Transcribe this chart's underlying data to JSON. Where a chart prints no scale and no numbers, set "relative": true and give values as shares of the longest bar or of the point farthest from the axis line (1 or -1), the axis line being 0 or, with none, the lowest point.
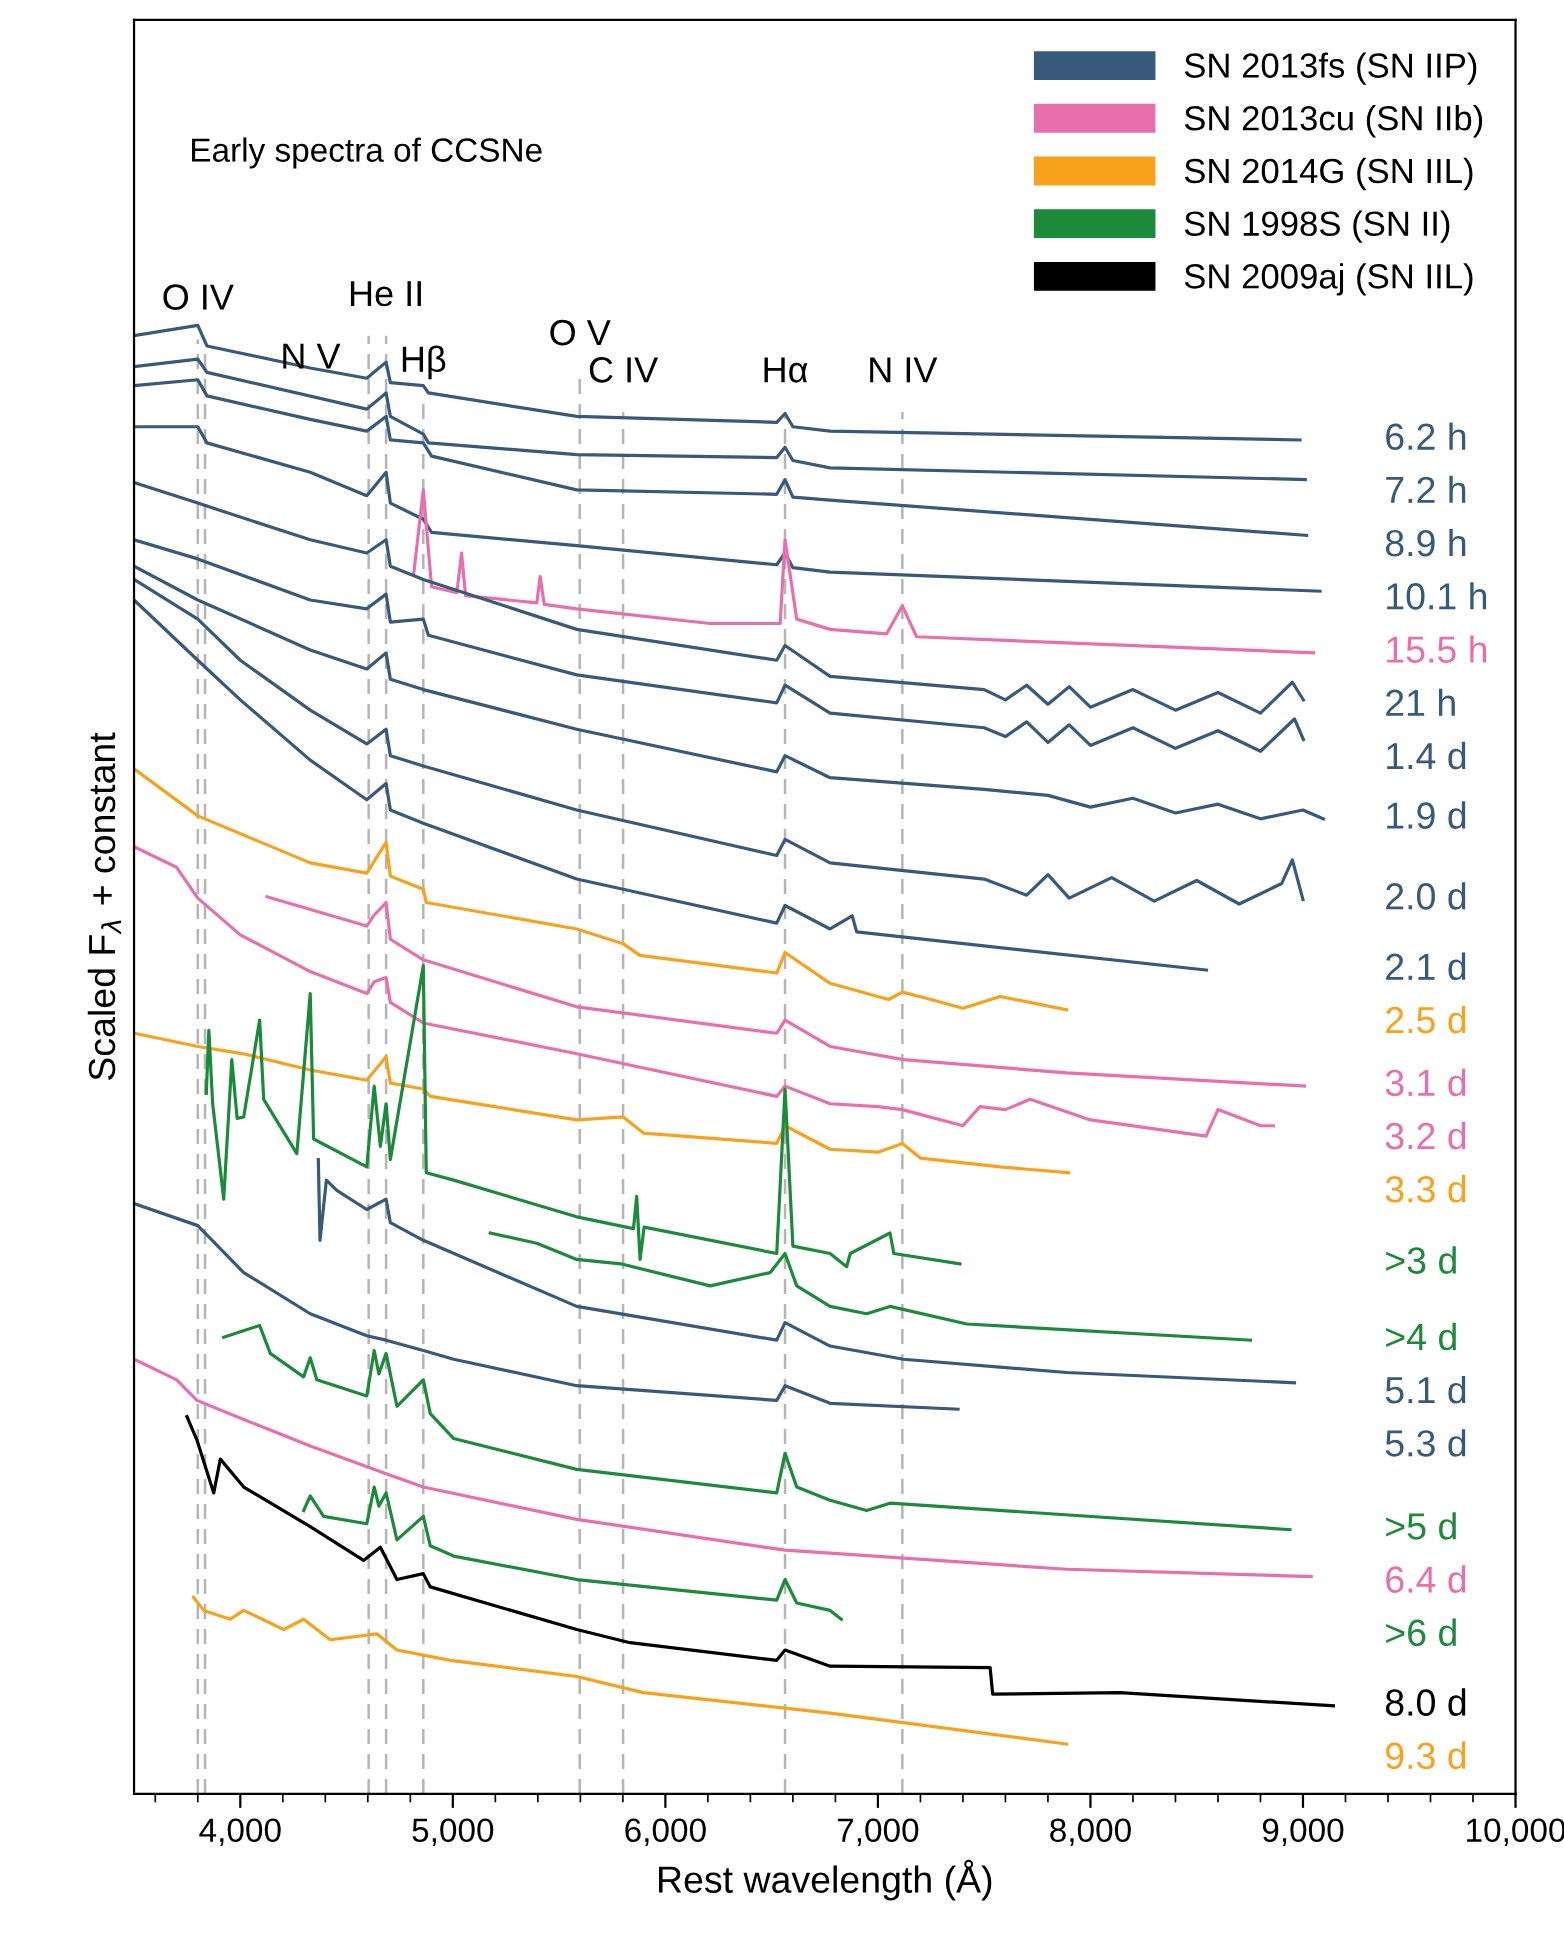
{
  "chart_data": {
    "type": "line",
    "title": "Early spectra of CCSNe",
    "xlabel": "Rest wavelength (Å)",
    "ylabel": "Scaled F$_{λ}$ + constant",
    "relative": true,
    "legend": "top right",
    "line_style": "solid",
    "xlim": [
      3500,
      10000
    ],
    "xticks": [
      {
        "value": 3600,
        "label": null
      },
      {
        "value": 3800,
        "label": null
      },
      {
        "value": 4000,
        "label": "4,000"
      },
      {
        "value": 4200,
        "label": null
      },
      {
        "value": 4400,
        "label": null
      },
      {
        "value": 4600,
        "label": null
      },
      {
        "value": 4800,
        "label": null
      },
      {
        "value": 5000,
        "label": "5,000"
      },
      {
        "value": 5200,
        "label": null
      },
      {
        "value": 5400,
        "label": null
      },
      {
        "value": 5600,
        "label": null
      },
      {
        "value": 5800,
        "label": null
      },
      {
        "value": 6000,
        "label": "6,000"
      },
      {
        "value": 6200,
        "label": null
      },
      {
        "value": 6400,
        "label": null
      },
      {
        "value": 6600,
        "label": null
      },
      {
        "value": 6800,
        "label": null
      },
      {
        "value": 7000,
        "label": "7,000"
      },
      {
        "value": 7200,
        "label": null
      },
      {
        "value": 7400,
        "label": null
      },
      {
        "value": 7600,
        "label": null
      },
      {
        "value": 7800,
        "label": null
      },
      {
        "value": 8000,
        "label": "8,000"
      },
      {
        "value": 8200,
        "label": null
      },
      {
        "value": 8400,
        "label": null
      },
      {
        "value": 8600,
        "label": null
      },
      {
        "value": 8800,
        "label": null
      },
      {
        "value": 9000,
        "label": "9,000"
      },
      {
        "value": 9200,
        "label": null
      },
      {
        "value": 9400,
        "label": null
      },
      {
        "value": 9600,
        "label": null
      },
      {
        "value": 9800,
        "label": null
      },
      {
        "value": 10000,
        "label": "10,000"
      }
    ],
    "series": [
      {
        "name": "SN 2013fs (SN IIP)",
        "color": "#37597c",
        "x": [
          3500,
          3800,
          3843,
          4329,
          4595,
          4686,
          4706,
          4861,
          4885,
          5583,
          6524,
          6563,
          6600,
          6775,
          8986
        ],
        "values": [
          0.993,
          1.0,
          0.986,
          0.971,
          0.964,
          0.975,
          0.961,
          0.959,
          0.954,
          0.938,
          0.934,
          0.94,
          0.931,
          0.928,
          0.922
        ]
      },
      {
        "color": "#37597c",
        "x": [
          3500,
          3800,
          3843,
          4595,
          4686,
          4706,
          4861,
          4885,
          5583,
          6524,
          6563,
          6600,
          6775,
          9011
        ],
        "values": [
          0.972,
          0.977,
          0.968,
          0.943,
          0.954,
          0.938,
          0.926,
          0.92,
          0.912,
          0.91,
          0.917,
          0.908,
          0.903,
          0.895
        ]
      },
      {
        "color": "#37597c",
        "x": [
          3500,
          3800,
          3843,
          4329,
          4595,
          4686,
          4706,
          4861,
          4900,
          5583,
          6524,
          6563,
          6600,
          6775,
          9017
        ],
        "values": [
          0.959,
          0.963,
          0.952,
          0.936,
          0.928,
          0.938,
          0.922,
          0.92,
          0.911,
          0.888,
          0.885,
          0.895,
          0.883,
          0.881,
          0.857
        ]
      },
      {
        "color": "#37597c",
        "x": [
          3500,
          3800,
          3843,
          4329,
          4595,
          4686,
          4706,
          4861,
          4900,
          5583,
          6524,
          6563,
          6600,
          6775,
          9080
        ],
        "values": [
          0.931,
          0.931,
          0.92,
          0.9,
          0.884,
          0.9,
          0.879,
          0.868,
          0.859,
          0.85,
          0.837,
          0.845,
          0.835,
          0.832,
          0.819
        ]
      },
      {
        "name": "SN 2013cu (SN IIb)",
        "color": "#e96fac",
        "x": [
          4816,
          4861,
          4900,
          5019,
          5041,
          5060,
          5395,
          5411,
          5430,
          5583,
          6211,
          6540,
          6563,
          6618,
          6775,
          7041,
          7115,
          7182,
          9049
        ],
        "values": [
          0.831,
          0.888,
          0.822,
          0.818,
          0.845,
          0.816,
          0.811,
          0.829,
          0.81,
          0.807,
          0.797,
          0.797,
          0.854,
          0.8,
          0.793,
          0.79,
          0.809,
          0.788,
          0.777
        ]
      },
      {
        "color": "#37597c",
        "x": [
          3500,
          3800,
          4329,
          4595,
          4686,
          4706,
          4861,
          5583,
          6524,
          6563,
          6775,
          7500,
          7600,
          7700,
          7800,
          7900,
          8000,
          8200,
          8400,
          8600,
          8800,
          8950,
          9002
        ],
        "values": [
          0.893,
          0.879,
          0.854,
          0.845,
          0.854,
          0.836,
          0.827,
          0.793,
          0.772,
          0.782,
          0.761,
          0.752,
          0.745,
          0.755,
          0.742,
          0.754,
          0.74,
          0.752,
          0.738,
          0.75,
          0.736,
          0.757,
          0.745
        ]
      },
      {
        "color": "#37597c",
        "x": [
          3500,
          3800,
          4329,
          4595,
          4686,
          4706,
          4861,
          4885,
          5583,
          6524,
          6563,
          6775,
          7500,
          7600,
          7700,
          7800,
          7900,
          8000,
          8200,
          8400,
          8600,
          8800,
          8960,
          9002
        ],
        "values": [
          0.854,
          0.841,
          0.813,
          0.807,
          0.817,
          0.798,
          0.8,
          0.789,
          0.762,
          0.743,
          0.755,
          0.736,
          0.726,
          0.72,
          0.73,
          0.716,
          0.728,
          0.714,
          0.726,
          0.712,
          0.724,
          0.71,
          0.732,
          0.718
        ]
      },
      {
        "color": "#37597c",
        "x": [
          3500,
          3800,
          4329,
          4595,
          4686,
          4706,
          4861,
          5583,
          6524,
          6563,
          6775,
          7500,
          7800,
          8000,
          8200,
          8400,
          8600,
          8800,
          9000,
          9096
        ],
        "values": [
          0.836,
          0.813,
          0.779,
          0.766,
          0.777,
          0.759,
          0.752,
          0.725,
          0.696,
          0.707,
          0.692,
          0.684,
          0.68,
          0.672,
          0.678,
          0.668,
          0.674,
          0.664,
          0.67,
          0.664
        ]
      },
      {
        "color": "#37597c",
        "x": [
          3500,
          3800,
          4000,
          4329,
          4595,
          4686,
          4706,
          4861,
          5583,
          6524,
          6563,
          6775,
          7500,
          7700,
          7800,
          7900,
          8100,
          8300,
          8500,
          8700,
          8900,
          8950,
          9000
        ],
        "values": [
          0.827,
          0.8,
          0.772,
          0.738,
          0.715,
          0.725,
          0.707,
          0.7,
          0.67,
          0.639,
          0.65,
          0.634,
          0.623,
          0.612,
          0.626,
          0.61,
          0.624,
          0.608,
          0.622,
          0.606,
          0.62,
          0.636,
          0.609
        ]
      },
      {
        "color": "#37597c",
        "x": [
          3500,
          3800,
          4000,
          4329,
          4595,
          4686,
          4706,
          4861,
          5583,
          6524,
          6563,
          6775,
          6879,
          6900,
          8546
        ],
        "values": [
          0.813,
          0.772,
          0.745,
          0.704,
          0.677,
          0.688,
          0.67,
          0.661,
          0.623,
          0.593,
          0.605,
          0.589,
          0.598,
          0.587,
          0.561
        ]
      },
      {
        "name": "SN 2014G (SN IIL)",
        "color": "#f9a11b",
        "x": [
          3500,
          3800,
          4329,
          4595,
          4686,
          4706,
          4861,
          4875,
          5583,
          5801,
          5880,
          6524,
          6563,
          6775,
          7050,
          7115,
          7250,
          7400,
          7575,
          7888
        ],
        "values": [
          0.698,
          0.666,
          0.634,
          0.627,
          0.648,
          0.625,
          0.616,
          0.607,
          0.589,
          0.579,
          0.571,
          0.559,
          0.573,
          0.552,
          0.541,
          0.546,
          0.541,
          0.535,
          0.543,
          0.534
        ]
      },
      {
        "color": "#e96fac",
        "x": [
          4125,
          4595,
          4627,
          4686,
          4706,
          4861,
          5583,
          6524,
          6563,
          6775,
          7120,
          7888,
          9007
        ],
        "values": [
          0.611,
          0.591,
          0.598,
          0.607,
          0.582,
          0.568,
          0.536,
          0.518,
          0.527,
          0.509,
          0.5,
          0.491,
          0.482
        ]
      },
      {
        "color": "#e96fac",
        "x": [
          3500,
          3700,
          3800,
          4000,
          4329,
          4595,
          4630,
          4686,
          4706,
          4861,
          5583,
          6524,
          6563,
          6775,
          7000,
          7115,
          7400,
          7480,
          7600,
          7716,
          8000,
          8544,
          8600,
          8800,
          8861
        ],
        "values": [
          0.645,
          0.631,
          0.61,
          0.585,
          0.56,
          0.545,
          0.553,
          0.556,
          0.539,
          0.525,
          0.504,
          0.475,
          0.482,
          0.47,
          0.468,
          0.466,
          0.455,
          0.468,
          0.466,
          0.473,
          0.459,
          0.448,
          0.466,
          0.455,
          0.455
        ]
      },
      {
        "color": "#f9a11b",
        "x": [
          3500,
          3800,
          4016,
          4329,
          4595,
          4686,
          4706,
          4861,
          4894,
          5583,
          5801,
          5897,
          6524,
          6563,
          6775,
          7000,
          7115,
          7200,
          7575,
          7897
        ],
        "values": [
          0.518,
          0.509,
          0.504,
          0.493,
          0.486,
          0.502,
          0.484,
          0.48,
          0.475,
          0.459,
          0.461,
          0.45,
          0.443,
          0.455,
          0.439,
          0.437,
          0.443,
          0.433,
          0.427,
          0.423
        ]
      },
      {
        "name": "SN 1998S (SN II)",
        "color": "#1b8a3a",
        "x": [
          3840,
          3852,
          3870,
          3922,
          3960,
          3985,
          4016,
          4091,
          4110,
          4266,
          4329,
          4345,
          4595,
          4630,
          4659,
          4686,
          4706,
          4861,
          4875,
          5004,
          5583,
          5850,
          5865,
          5881,
          5900,
          6524,
          6563,
          6600,
          6775,
          6853,
          6870,
          7057,
          7075,
          7386
        ],
        "values": [
          0.477,
          0.52,
          0.47,
          0.405,
          0.5,
          0.46,
          0.461,
          0.527,
          0.473,
          0.436,
          0.545,
          0.446,
          0.427,
          0.482,
          0.441,
          0.47,
          0.432,
          0.564,
          0.423,
          0.418,
          0.393,
          0.385,
          0.407,
          0.364,
          0.386,
          0.368,
          0.48,
          0.373,
          0.368,
          0.359,
          0.368,
          0.382,
          0.368,
          0.361
        ]
      },
      {
        "color": "#1b8a3a",
        "x": [
          5176,
          5395,
          5583,
          5790,
          6211,
          6493,
          6563,
          6618,
          6775,
          6947,
          7057,
          7418,
          8753
        ],
        "values": [
          0.382,
          0.375,
          0.364,
          0.361,
          0.346,
          0.355,
          0.368,
          0.346,
          0.332,
          0.327,
          0.332,
          0.32,
          0.309
        ]
      },
      {
        "color": "#37597c",
        "x": [
          4367,
          4375,
          4405,
          4454,
          4595,
          4686,
          4706,
          4861,
          5583,
          6524,
          6563,
          6775,
          7120,
          7888,
          8960
        ],
        "values": [
          0.432,
          0.377,
          0.418,
          0.411,
          0.398,
          0.405,
          0.389,
          0.377,
          0.332,
          0.309,
          0.321,
          0.305,
          0.296,
          0.287,
          0.28
        ]
      },
      {
        "color": "#37597c",
        "x": [
          3500,
          3800,
          4016,
          4329,
          4595,
          4686,
          4861,
          5004,
          5583,
          6524,
          6563,
          6775,
          7377
        ],
        "values": [
          0.402,
          0.387,
          0.355,
          0.327,
          0.312,
          0.309,
          0.302,
          0.296,
          0.278,
          0.268,
          0.278,
          0.266,
          0.262
        ]
      },
      {
        "color": "#1b8a3a",
        "x": [
          3922,
          4091,
          4141,
          4298,
          4329,
          4360,
          4595,
          4630,
          4652,
          4686,
          4737,
          4861,
          4894,
          5004,
          5583,
          6524,
          6563,
          6618,
          6775,
          6947,
          7057,
          8939
        ],
        "values": [
          0.311,
          0.319,
          0.3,
          0.284,
          0.297,
          0.282,
          0.271,
          0.302,
          0.286,
          0.3,
          0.264,
          0.282,
          0.259,
          0.242,
          0.221,
          0.205,
          0.232,
          0.209,
          0.2,
          0.193,
          0.198,
          0.18
        ]
      },
      {
        "color": "#e96fac",
        "x": [
          3500,
          3701,
          3796,
          4016,
          4329,
          4686,
          4861,
          5583,
          6563,
          6775,
          7888,
          9039
        ],
        "values": [
          0.296,
          0.282,
          0.268,
          0.255,
          0.237,
          0.218,
          0.209,
          0.187,
          0.166,
          0.164,
          0.153,
          0.148
        ]
      },
      {
        "color": "#1b8a3a",
        "x": [
          4298,
          4329,
          4392,
          4595,
          4630,
          4652,
          4686,
          4737,
          4861,
          4894,
          5004,
          5583,
          6524,
          6563,
          6618,
          6775,
          6828
        ],
        "values": [
          0.193,
          0.203,
          0.189,
          0.184,
          0.209,
          0.196,
          0.205,
          0.173,
          0.189,
          0.169,
          0.162,
          0.146,
          0.132,
          0.146,
          0.13,
          0.125,
          0.119
        ]
      },
      {
        "name": "SN 2009aj (SN IIL)",
        "color": "#000000",
        "x": [
          3749,
          3796,
          3875,
          3906,
          4016,
          4329,
          4580,
          4659,
          4737,
          4861,
          4894,
          5583,
          5834,
          6524,
          6563,
          6775,
          7528,
          7540,
          8139,
          9143
        ],
        "values": [
          0.257,
          0.241,
          0.205,
          0.228,
          0.209,
          0.182,
          0.159,
          0.168,
          0.146,
          0.15,
          0.141,
          0.112,
          0.103,
          0.091,
          0.098,
          0.087,
          0.086,
          0.068,
          0.069,
          0.06
        ]
      },
      {
        "color": "#f9a11b",
        "x": [
          3780,
          3828,
          3953,
          4016,
          4204,
          4298,
          4423,
          4643,
          4737,
          4988,
          5583,
          5897,
          6775,
          7888
        ],
        "values": [
          0.134,
          0.125,
          0.119,
          0.125,
          0.112,
          0.119,
          0.105,
          0.109,
          0.098,
          0.091,
          0.08,
          0.069,
          0.055,
          0.034
        ]
      }
    ],
    "annotations": [
      "6.2 h",
      "7.2 h",
      "8.9 h",
      "10.1 h",
      "15.5 h",
      "21 h",
      "1.4 d",
      "1.9 d",
      "2.0 d",
      "2.1 d",
      "2.5 d",
      "3.1 d",
      "3.2 d",
      "3.3 d",
      ">3 d",
      ">4 d",
      "5.1 d",
      "5.3 d",
      ">5 d",
      "6.4 d",
      ">6 d",
      "8.0 d",
      "9.3 d",
      {
        "text": "N V",
        "x": 4330,
        "y": 0.977
      }
    ],
    "ref_lines": [
      {
        "axis": "x",
        "value": 3800,
        "label": "O IV",
        "color": "#b5b5b5",
        "line_style": "dashed"
      },
      {
        "axis": "x",
        "value": 3834,
        "label": null,
        "color": "#b5b5b5",
        "line_style": "dashed"
      },
      {
        "axis": "x",
        "value": 4604,
        "label": null,
        "color": "#b5b5b5",
        "line_style": "dashed"
      },
      {
        "axis": "x",
        "value": 4686,
        "label": "He II",
        "color": "#b5b5b5",
        "line_style": "dashed"
      },
      {
        "axis": "x",
        "value": 4861,
        "label": "Hβ",
        "color": "#b5b5b5",
        "line_style": "dashed"
      },
      {
        "axis": "x",
        "value": 5597,
        "label": "O V",
        "color": "#b5b5b5",
        "line_style": "dashed"
      },
      {
        "axis": "x",
        "value": 5801,
        "label": "C IV",
        "color": "#b5b5b5",
        "line_style": "dashed"
      },
      {
        "axis": "x",
        "value": 6563,
        "label": "Hα",
        "color": "#b5b5b5",
        "line_style": "dashed"
      },
      {
        "axis": "x",
        "value": 7115,
        "label": "N IV",
        "color": "#b5b5b5",
        "line_style": "dashed"
      }
    ]
  }
}
